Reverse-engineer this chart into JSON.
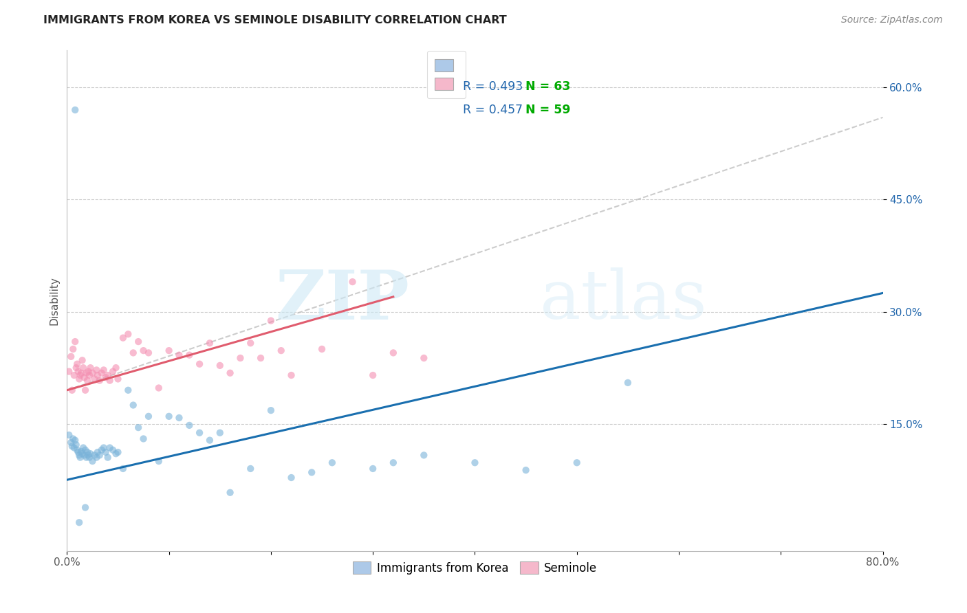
{
  "title": "IMMIGRANTS FROM KOREA VS SEMINOLE DISABILITY CORRELATION CHART",
  "source": "Source: ZipAtlas.com",
  "ylabel": "Disability",
  "xlim": [
    0.0,
    0.8
  ],
  "ylim": [
    -0.02,
    0.65
  ],
  "xticks": [
    0.0,
    0.1,
    0.2,
    0.3,
    0.4,
    0.5,
    0.6,
    0.7,
    0.8
  ],
  "xticklabels": [
    "0.0%",
    "",
    "",
    "",
    "",
    "",
    "",
    "",
    "80.0%"
  ],
  "ytick_positions": [
    0.15,
    0.3,
    0.45,
    0.6
  ],
  "yticklabels": [
    "15.0%",
    "30.0%",
    "45.0%",
    "60.0%"
  ],
  "series1_name": "Immigrants from Korea",
  "series2_name": "Seminole",
  "series1_color": "#7ab3d9",
  "series2_color": "#f48fb1",
  "series1_line_color": "#1a6faf",
  "series2_line_color": "#e05c6e",
  "series1_r": "0.493",
  "series1_n": "63",
  "series2_r": "0.457",
  "series2_n": "59",
  "r_text_color": "#2166ac",
  "n_text_color": "#00aa00",
  "trendline1_x": [
    0.0,
    0.8
  ],
  "trendline1_y": [
    0.075,
    0.325
  ],
  "trendline2_x": [
    0.0,
    0.32
  ],
  "trendline2_y": [
    0.195,
    0.32
  ],
  "extrapolated_line_x": [
    0.0,
    0.8
  ],
  "extrapolated_line_y": [
    0.195,
    0.56
  ],
  "watermark_zip": "ZIP",
  "watermark_atlas": "atlas",
  "background_color": "#ffffff",
  "grid_color": "#cccccc",
  "scatter_size": 55,
  "scatter_alpha": 0.6,
  "series1_x": [
    0.002,
    0.004,
    0.005,
    0.006,
    0.007,
    0.008,
    0.009,
    0.01,
    0.011,
    0.012,
    0.013,
    0.014,
    0.015,
    0.016,
    0.017,
    0.018,
    0.019,
    0.02,
    0.021,
    0.022,
    0.023,
    0.025,
    0.027,
    0.029,
    0.03,
    0.032,
    0.034,
    0.036,
    0.038,
    0.04,
    0.042,
    0.045,
    0.048,
    0.05,
    0.055,
    0.06,
    0.065,
    0.07,
    0.075,
    0.08,
    0.09,
    0.1,
    0.11,
    0.12,
    0.13,
    0.14,
    0.15,
    0.16,
    0.18,
    0.2,
    0.22,
    0.24,
    0.26,
    0.3,
    0.32,
    0.35,
    0.4,
    0.45,
    0.5,
    0.55,
    0.008,
    0.012,
    0.018
  ],
  "series1_y": [
    0.135,
    0.125,
    0.12,
    0.13,
    0.118,
    0.128,
    0.122,
    0.115,
    0.112,
    0.108,
    0.105,
    0.113,
    0.11,
    0.118,
    0.108,
    0.115,
    0.105,
    0.112,
    0.108,
    0.105,
    0.11,
    0.1,
    0.108,
    0.105,
    0.112,
    0.108,
    0.115,
    0.118,
    0.112,
    0.105,
    0.118,
    0.115,
    0.11,
    0.112,
    0.09,
    0.195,
    0.175,
    0.145,
    0.13,
    0.16,
    0.1,
    0.16,
    0.158,
    0.148,
    0.138,
    0.128,
    0.138,
    0.058,
    0.09,
    0.168,
    0.078,
    0.085,
    0.098,
    0.09,
    0.098,
    0.108,
    0.098,
    0.088,
    0.098,
    0.205,
    0.57,
    0.018,
    0.038
  ],
  "series2_x": [
    0.002,
    0.004,
    0.005,
    0.006,
    0.007,
    0.008,
    0.009,
    0.01,
    0.011,
    0.012,
    0.013,
    0.014,
    0.015,
    0.016,
    0.017,
    0.018,
    0.019,
    0.02,
    0.021,
    0.022,
    0.023,
    0.025,
    0.027,
    0.029,
    0.03,
    0.032,
    0.034,
    0.036,
    0.038,
    0.04,
    0.042,
    0.045,
    0.048,
    0.05,
    0.055,
    0.06,
    0.065,
    0.07,
    0.075,
    0.08,
    0.09,
    0.1,
    0.11,
    0.12,
    0.13,
    0.14,
    0.15,
    0.16,
    0.17,
    0.18,
    0.19,
    0.2,
    0.21,
    0.22,
    0.25,
    0.28,
    0.3,
    0.32,
    0.35
  ],
  "series2_y": [
    0.22,
    0.24,
    0.195,
    0.25,
    0.215,
    0.26,
    0.225,
    0.23,
    0.22,
    0.21,
    0.215,
    0.218,
    0.235,
    0.225,
    0.212,
    0.195,
    0.218,
    0.208,
    0.22,
    0.215,
    0.225,
    0.218,
    0.21,
    0.222,
    0.215,
    0.208,
    0.218,
    0.222,
    0.212,
    0.215,
    0.208,
    0.22,
    0.225,
    0.21,
    0.265,
    0.27,
    0.245,
    0.26,
    0.248,
    0.245,
    0.198,
    0.248,
    0.242,
    0.242,
    0.23,
    0.258,
    0.228,
    0.218,
    0.238,
    0.258,
    0.238,
    0.288,
    0.248,
    0.215,
    0.25,
    0.34,
    0.215,
    0.245,
    0.238
  ]
}
